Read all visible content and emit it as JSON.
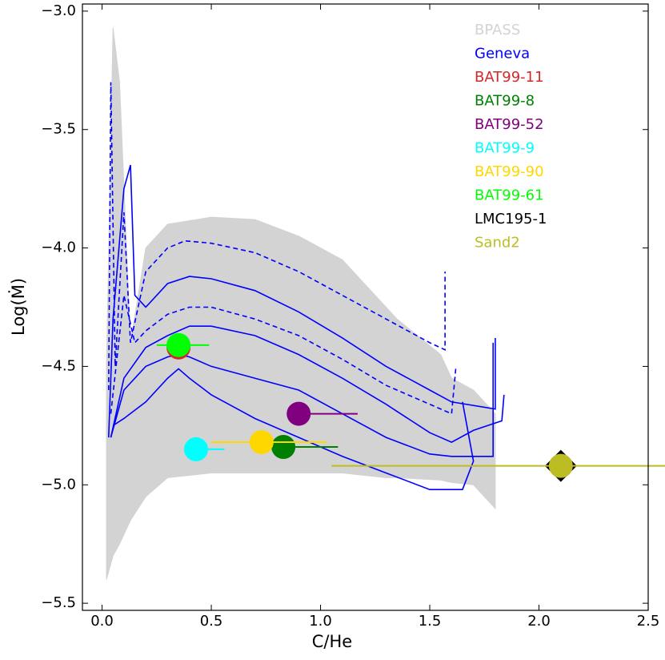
{
  "chart_data": {
    "type": "line",
    "xlabel": "C/He",
    "ylabel": "Log(Ṁ)",
    "xlim": [
      -0.09,
      2.5
    ],
    "ylim": [
      -5.53,
      -2.97
    ],
    "xticks": [
      {
        "value": 0,
        "label": "0.0"
      },
      {
        "value": 0.5,
        "label": "0.5"
      },
      {
        "value": 1,
        "label": "1.0"
      },
      {
        "value": 1.5,
        "label": "1.5"
      },
      {
        "value": 2,
        "label": "2.0"
      },
      {
        "value": 2.5,
        "label": "2.5"
      }
    ],
    "yticks": [
      {
        "value": -3,
        "label": "−3.0"
      },
      {
        "value": -3.5,
        "label": "−3.5"
      },
      {
        "value": -4,
        "label": "−4.0"
      },
      {
        "value": -4.5,
        "label": "−4.5"
      },
      {
        "value": -5,
        "label": "−5.0"
      },
      {
        "value": -5.5,
        "label": "−5.5"
      }
    ],
    "bands": [
      {
        "name": "BPASS",
        "color": "#d3d3d3",
        "x": [
          0.02,
          0.05,
          0.08,
          0.13,
          0.2,
          0.3,
          0.5,
          0.7,
          0.9,
          1.1,
          1.2,
          1.3,
          1.35,
          1.55,
          1.6,
          1.7,
          1.8
        ],
        "upper": [
          -4.5,
          -3.07,
          -3.3,
          -4.4,
          -4.0,
          -3.9,
          -3.87,
          -3.88,
          -3.95,
          -4.05,
          -4.15,
          -4.25,
          -4.3,
          -4.45,
          -4.55,
          -4.6,
          -4.7
        ],
        "lower": [
          -5.4,
          -5.3,
          -5.25,
          -5.15,
          -5.05,
          -4.97,
          -4.95,
          -4.95,
          -4.95,
          -4.95,
          -4.96,
          -4.97,
          -4.97,
          -4.98,
          -4.99,
          -5.0,
          -5.1
        ]
      }
    ],
    "tracks": {
      "name": "Geneva",
      "color": "#0000ff",
      "lines": [
        {
          "dashed": false,
          "x": [
            0.03,
            0.05,
            0.1,
            0.13,
            0.15,
            0.2,
            0.3,
            0.4,
            0.5,
            0.7,
            0.9,
            1.1,
            1.3,
            1.5,
            1.6,
            1.8,
            1.8
          ],
          "y": [
            -4.8,
            -4.3,
            -3.75,
            -3.65,
            -4.2,
            -4.25,
            -4.15,
            -4.12,
            -4.13,
            -4.18,
            -4.27,
            -4.38,
            -4.5,
            -4.6,
            -4.65,
            -4.68,
            -4.38
          ]
        },
        {
          "dashed": false,
          "x": [
            0.04,
            0.1,
            0.2,
            0.3,
            0.4,
            0.5,
            0.7,
            0.9,
            1.1,
            1.3,
            1.5,
            1.6,
            1.7,
            1.83,
            1.84
          ],
          "y": [
            -4.8,
            -4.55,
            -4.42,
            -4.37,
            -4.33,
            -4.33,
            -4.37,
            -4.45,
            -4.55,
            -4.66,
            -4.78,
            -4.82,
            -4.77,
            -4.73,
            -4.62
          ]
        },
        {
          "dashed": false,
          "x": [
            0.04,
            0.1,
            0.2,
            0.3,
            0.35,
            0.4,
            0.5,
            0.7,
            0.9,
            1.1,
            1.3,
            1.5,
            1.6,
            1.65,
            1.79,
            1.79
          ],
          "y": [
            -4.8,
            -4.6,
            -4.5,
            -4.46,
            -4.45,
            -4.46,
            -4.5,
            -4.55,
            -4.6,
            -4.7,
            -4.8,
            -4.87,
            -4.88,
            -4.88,
            -4.88,
            -4.4
          ]
        },
        {
          "dashed": false,
          "x": [
            0.05,
            0.1,
            0.2,
            0.3,
            0.35,
            0.4,
            0.5,
            0.7,
            0.9,
            1.1,
            1.3,
            1.5,
            1.65,
            1.7,
            1.65
          ],
          "y": [
            -4.75,
            -4.72,
            -4.65,
            -4.55,
            -4.51,
            -4.55,
            -4.62,
            -4.72,
            -4.8,
            -4.88,
            -4.95,
            -5.02,
            -5.02,
            -4.9,
            -4.65
          ]
        },
        {
          "dashed": true,
          "x": [
            0.03,
            0.04,
            0.06,
            0.1,
            0.13,
            0.2,
            0.3,
            0.38,
            0.5,
            0.7,
            0.9,
            1.1,
            1.3,
            1.5,
            1.57,
            1.57
          ],
          "y": [
            -4.6,
            -3.3,
            -4.5,
            -3.85,
            -4.4,
            -4.1,
            -4.0,
            -3.97,
            -3.98,
            -4.02,
            -4.1,
            -4.2,
            -4.3,
            -4.4,
            -4.43,
            -4.1
          ]
        },
        {
          "dashed": true,
          "x": [
            0.04,
            0.1,
            0.15,
            0.2,
            0.3,
            0.4,
            0.5,
            0.7,
            0.9,
            1.1,
            1.3,
            1.5,
            1.6,
            1.62
          ],
          "y": [
            -4.7,
            -4.2,
            -4.4,
            -4.35,
            -4.28,
            -4.25,
            -4.25,
            -4.3,
            -4.37,
            -4.47,
            -4.58,
            -4.66,
            -4.7,
            -4.5
          ]
        }
      ]
    },
    "points": [
      {
        "name": "BAT99-11",
        "color": "#d62728",
        "marker": "circle",
        "x": 0.35,
        "y": -4.42,
        "xerr": [
          0.02,
          0.05
        ]
      },
      {
        "name": "BAT99-8",
        "color": "#008000",
        "marker": "circle",
        "x": 0.83,
        "y": -4.84,
        "xerr": [
          0,
          0.25
        ]
      },
      {
        "name": "BAT99-52",
        "color": "#800080",
        "marker": "circle",
        "x": 0.9,
        "y": -4.7,
        "xerr": [
          0,
          0.27
        ]
      },
      {
        "name": "BAT99-9",
        "color": "#00ffff",
        "marker": "circle",
        "x": 0.43,
        "y": -4.85,
        "xerr": [
          0,
          0.13
        ]
      },
      {
        "name": "BAT99-90",
        "color": "#ffd700",
        "marker": "circle",
        "x": 0.73,
        "y": -4.82,
        "xerr": [
          0.23,
          0.3
        ]
      },
      {
        "name": "BAT99-61",
        "color": "#00ff00",
        "marker": "circle",
        "x": 0.35,
        "y": -4.41,
        "xerr": [
          0.1,
          0.14
        ]
      },
      {
        "name": "LMC195-1",
        "color": "#000000",
        "marker": "diamond",
        "x": 2.1,
        "y": -4.92,
        "xerr": [
          0,
          0
        ]
      },
      {
        "name": "Sand2",
        "color": "#bcbd22",
        "marker": "circle",
        "x": 2.1,
        "y": -4.92,
        "xerr": [
          1.05,
          0.5
        ]
      }
    ]
  }
}
